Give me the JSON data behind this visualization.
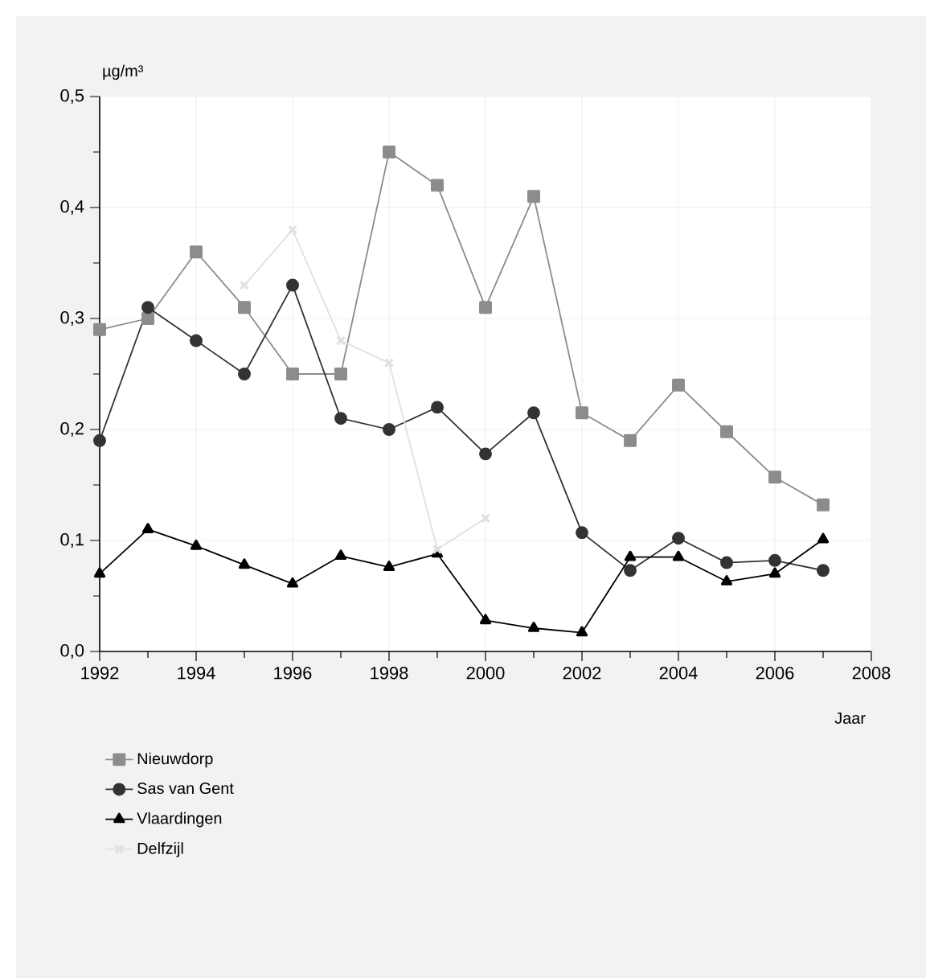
{
  "chart_data": {
    "type": "line",
    "ylabel": "µg/m³",
    "xlabel": "Jaar",
    "x": [
      1992,
      1993,
      1994,
      1995,
      1996,
      1997,
      1998,
      1999,
      2000,
      2001,
      2002,
      2003,
      2004,
      2005,
      2006,
      2007
    ],
    "series": [
      {
        "name": "Nieuwdorp",
        "color": "#8c8c8c",
        "marker": "square",
        "values": [
          0.29,
          0.3,
          0.36,
          0.31,
          0.25,
          0.25,
          0.45,
          0.42,
          0.31,
          0.41,
          0.215,
          0.19,
          0.24,
          0.198,
          0.157,
          0.132
        ]
      },
      {
        "name": "Sas van Gent",
        "color": "#333333",
        "marker": "circle",
        "values": [
          0.19,
          0.31,
          0.28,
          0.25,
          0.33,
          0.21,
          0.2,
          0.22,
          0.178,
          0.215,
          0.107,
          0.073,
          0.102,
          0.08,
          0.082,
          0.073
        ]
      },
      {
        "name": "Vlaardingen",
        "color": "#000000",
        "marker": "triangle",
        "values": [
          0.07,
          0.11,
          0.095,
          0.078,
          0.061,
          0.086,
          0.076,
          0.088,
          0.028,
          0.021,
          0.017,
          0.085,
          0.085,
          0.063,
          0.07,
          0.101
        ]
      },
      {
        "name": "Delfzijl",
        "color": "#e0e0e0",
        "marker": "cross",
        "values": [
          null,
          null,
          null,
          0.33,
          0.38,
          0.28,
          0.26,
          0.092,
          0.12,
          null,
          null,
          null,
          null,
          null,
          null,
          null
        ]
      }
    ],
    "xlim": [
      1992,
      2008
    ],
    "xticks": [
      1992,
      {
        "value": 1993,
        "label": null
      },
      1994,
      {
        "value": 1995,
        "label": null
      },
      1996,
      {
        "value": 1997,
        "label": null
      },
      1998,
      {
        "value": 1999,
        "label": null
      },
      2000,
      {
        "value": 2001,
        "label": null
      },
      2002,
      {
        "value": 2003,
        "label": null
      },
      2004,
      {
        "value": 2005,
        "label": null
      },
      2006,
      {
        "value": 2007,
        "label": null
      },
      2008
    ],
    "ylim": [
      0,
      0.5
    ],
    "yticks": [
      {
        "value": 0,
        "label": "0,0"
      },
      {
        "value": 0.05,
        "label": null
      },
      {
        "value": 0.1,
        "label": "0,1"
      },
      {
        "value": 0.15,
        "label": null
      },
      {
        "value": 0.2,
        "label": "0,2"
      },
      {
        "value": 0.25,
        "label": null
      },
      {
        "value": 0.3,
        "label": "0,3"
      },
      {
        "value": 0.35,
        "label": null
      },
      {
        "value": 0.4,
        "label": "0,4"
      },
      {
        "value": 0.45,
        "label": null
      },
      {
        "value": 0.5,
        "label": "0,5"
      }
    ],
    "grid": true,
    "legend": "bottom left",
    "line_style": "solid"
  }
}
